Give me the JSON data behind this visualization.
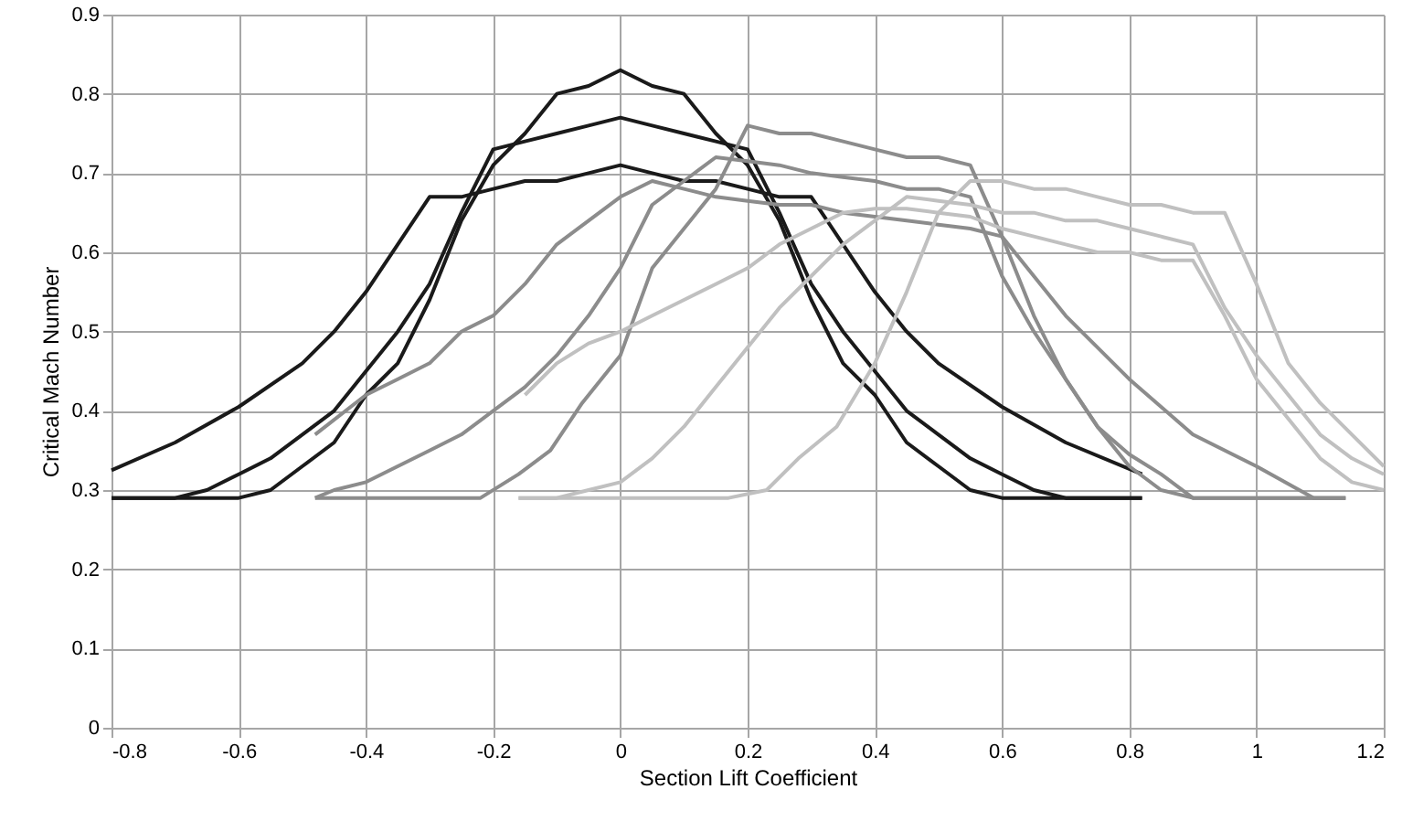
{
  "chart_data": {
    "type": "line",
    "xlabel": "Section Lift Coefficient",
    "ylabel": "Critical Mach Number",
    "xlim": [
      -0.8,
      1.2
    ],
    "ylim": [
      0,
      0.9
    ],
    "xticks": [
      -0.8,
      -0.6,
      -0.4,
      -0.2,
      0,
      0.2,
      0.4,
      0.6,
      0.8,
      1,
      1.2
    ],
    "yticks": [
      0,
      0.1,
      0.2,
      0.3,
      0.4,
      0.5,
      0.6,
      0.7,
      0.8,
      0.9
    ],
    "grid": true,
    "marker": "none",
    "line_style": "solid",
    "series": [
      {
        "color": "#1a1a1a",
        "x": [
          -0.8,
          -0.7,
          -0.6,
          -0.5,
          -0.45,
          -0.4,
          -0.35,
          -0.3,
          -0.25,
          -0.2,
          -0.15,
          -0.1,
          -0.05,
          0,
          0.05,
          0.1,
          0.15,
          0.2,
          0.25,
          0.3,
          0.35,
          0.4,
          0.45,
          0.5,
          0.6,
          0.7,
          0.82
        ],
        "values": [
          0.325,
          0.36,
          0.405,
          0.46,
          0.5,
          0.55,
          0.61,
          0.67,
          0.67,
          0.68,
          0.69,
          0.69,
          0.7,
          0.71,
          0.7,
          0.69,
          0.69,
          0.68,
          0.67,
          0.67,
          0.61,
          0.55,
          0.5,
          0.46,
          0.405,
          0.36,
          0.32
        ]
      },
      {
        "color": "#1a1a1a",
        "x": [
          -0.8,
          -0.7,
          -0.65,
          -0.6,
          -0.55,
          -0.5,
          -0.45,
          -0.4,
          -0.35,
          -0.3,
          -0.25,
          -0.2,
          -0.15,
          -0.1,
          -0.05,
          0,
          0.05,
          0.1,
          0.15,
          0.2,
          0.25,
          0.3,
          0.35,
          0.4,
          0.45,
          0.5,
          0.55,
          0.6,
          0.65,
          0.7,
          0.82
        ],
        "values": [
          0.29,
          0.29,
          0.3,
          0.32,
          0.34,
          0.37,
          0.4,
          0.45,
          0.5,
          0.56,
          0.65,
          0.73,
          0.74,
          0.75,
          0.76,
          0.77,
          0.76,
          0.75,
          0.74,
          0.73,
          0.65,
          0.56,
          0.5,
          0.45,
          0.4,
          0.37,
          0.34,
          0.32,
          0.3,
          0.29,
          0.29
        ]
      },
      {
        "color": "#1a1a1a",
        "x": [
          -0.8,
          -0.6,
          -0.55,
          -0.5,
          -0.45,
          -0.4,
          -0.35,
          -0.3,
          -0.25,
          -0.2,
          -0.15,
          -0.1,
          -0.05,
          0,
          0.05,
          0.1,
          0.15,
          0.2,
          0.25,
          0.3,
          0.35,
          0.4,
          0.45,
          0.5,
          0.55,
          0.6,
          0.82
        ],
        "values": [
          0.29,
          0.29,
          0.3,
          0.33,
          0.36,
          0.42,
          0.46,
          0.54,
          0.64,
          0.71,
          0.75,
          0.8,
          0.81,
          0.83,
          0.81,
          0.8,
          0.75,
          0.71,
          0.64,
          0.54,
          0.46,
          0.42,
          0.36,
          0.33,
          0.3,
          0.29,
          0.29
        ]
      },
      {
        "color": "#8c8c8c",
        "x": [
          -0.48,
          -0.22,
          -0.16,
          -0.11,
          -0.06,
          0,
          0.05,
          0.1,
          0.15,
          0.2,
          0.25,
          0.3,
          0.35,
          0.4,
          0.45,
          0.5,
          0.55,
          0.6,
          0.65,
          0.7,
          0.75,
          0.8,
          0.85,
          0.9,
          1.14
        ],
        "values": [
          0.29,
          0.29,
          0.32,
          0.35,
          0.41,
          0.47,
          0.58,
          0.63,
          0.68,
          0.76,
          0.75,
          0.75,
          0.74,
          0.73,
          0.72,
          0.72,
          0.71,
          0.62,
          0.52,
          0.44,
          0.38,
          0.33,
          0.3,
          0.29,
          0.29
        ]
      },
      {
        "color": "#8c8c8c",
        "x": [
          -0.48,
          -0.45,
          -0.4,
          -0.35,
          -0.3,
          -0.25,
          -0.2,
          -0.15,
          -0.1,
          -0.05,
          0,
          0.05,
          0.1,
          0.15,
          0.2,
          0.25,
          0.3,
          0.35,
          0.4,
          0.45,
          0.5,
          0.55,
          0.6,
          0.65,
          0.7,
          0.75,
          0.8,
          0.85,
          0.9,
          1.14
        ],
        "values": [
          0.29,
          0.3,
          0.31,
          0.33,
          0.35,
          0.37,
          0.4,
          0.43,
          0.47,
          0.52,
          0.58,
          0.66,
          0.69,
          0.72,
          0.715,
          0.71,
          0.7,
          0.695,
          0.69,
          0.68,
          0.68,
          0.67,
          0.57,
          0.5,
          0.44,
          0.38,
          0.345,
          0.32,
          0.29,
          0.29
        ]
      },
      {
        "color": "#8c8c8c",
        "x": [
          -0.48,
          -0.4,
          -0.35,
          -0.3,
          -0.25,
          -0.2,
          -0.15,
          -0.1,
          -0.05,
          0,
          0.05,
          0.1,
          0.15,
          0.2,
          0.25,
          0.3,
          0.35,
          0.4,
          0.45,
          0.5,
          0.55,
          0.6,
          0.65,
          0.7,
          0.8,
          0.9,
          1,
          1.09,
          1.14
        ],
        "values": [
          0.37,
          0.42,
          0.44,
          0.46,
          0.5,
          0.52,
          0.56,
          0.61,
          0.64,
          0.67,
          0.69,
          0.68,
          0.67,
          0.665,
          0.66,
          0.66,
          0.65,
          0.645,
          0.64,
          0.635,
          0.63,
          0.62,
          0.57,
          0.52,
          0.44,
          0.37,
          0.33,
          0.29,
          0.29
        ]
      },
      {
        "color": "#c0c0c0",
        "x": [
          -0.16,
          0.17,
          0.23,
          0.28,
          0.34,
          0.4,
          0.45,
          0.5,
          0.55,
          0.6,
          0.65,
          0.7,
          0.75,
          0.8,
          0.85,
          0.9,
          0.95,
          1,
          1.05,
          1.1,
          1.15,
          1.2
        ],
        "values": [
          0.29,
          0.29,
          0.3,
          0.34,
          0.38,
          0.46,
          0.55,
          0.65,
          0.69,
          0.69,
          0.68,
          0.68,
          0.67,
          0.66,
          0.66,
          0.65,
          0.65,
          0.56,
          0.46,
          0.41,
          0.37,
          0.33
        ]
      },
      {
        "color": "#c0c0c0",
        "x": [
          -0.16,
          -0.1,
          -0.05,
          0,
          0.05,
          0.1,
          0.15,
          0.2,
          0.25,
          0.3,
          0.35,
          0.4,
          0.45,
          0.5,
          0.55,
          0.6,
          0.65,
          0.7,
          0.75,
          0.8,
          0.85,
          0.9,
          0.95,
          1,
          1.05,
          1.1,
          1.15,
          1.2
        ],
        "values": [
          0.29,
          0.29,
          0.3,
          0.31,
          0.34,
          0.38,
          0.43,
          0.48,
          0.53,
          0.57,
          0.61,
          0.64,
          0.67,
          0.665,
          0.66,
          0.65,
          0.65,
          0.64,
          0.64,
          0.63,
          0.62,
          0.61,
          0.53,
          0.47,
          0.42,
          0.37,
          0.34,
          0.32
        ]
      },
      {
        "color": "#c0c0c0",
        "x": [
          -0.15,
          -0.1,
          -0.05,
          0,
          0.05,
          0.1,
          0.15,
          0.2,
          0.25,
          0.3,
          0.35,
          0.4,
          0.45,
          0.5,
          0.55,
          0.6,
          0.65,
          0.7,
          0.75,
          0.8,
          0.85,
          0.9,
          0.95,
          1,
          1.05,
          1.1,
          1.15,
          1.2
        ],
        "values": [
          0.42,
          0.46,
          0.485,
          0.5,
          0.52,
          0.54,
          0.56,
          0.58,
          0.61,
          0.63,
          0.65,
          0.655,
          0.655,
          0.65,
          0.645,
          0.63,
          0.62,
          0.61,
          0.6,
          0.6,
          0.59,
          0.59,
          0.52,
          0.44,
          0.39,
          0.34,
          0.31,
          0.3
        ]
      }
    ]
  }
}
